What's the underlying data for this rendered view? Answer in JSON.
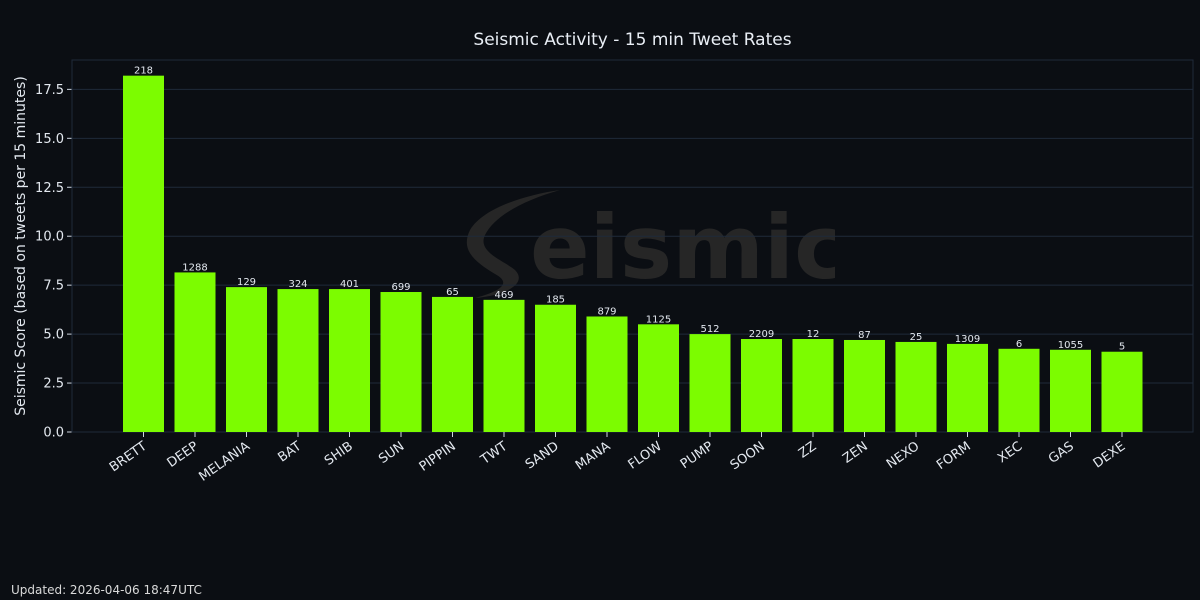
{
  "chart_data": {
    "type": "bar",
    "title": "Seismic Activity - 15 min Tweet Rates",
    "xlabel": "",
    "ylabel": "Seismic Score (based on tweets per 15 minutes)",
    "ylim": [
      0,
      19
    ],
    "yticks": [
      "0.0",
      "2.5",
      "5.0",
      "7.5",
      "10.0",
      "12.5",
      "15.0",
      "17.5"
    ],
    "grid": true,
    "categories": [
      "BRETT",
      "DEEP",
      "MELANIA",
      "BAT",
      "SHIB",
      "SUN",
      "PIPPIN",
      "TWT",
      "SAND",
      "MANA",
      "FLOW",
      "PUMP",
      "SOON",
      "ZZ",
      "ZEN",
      "NEXO",
      "FORM",
      "XEC",
      "GAS",
      "DEXE"
    ],
    "values": [
      18.2,
      8.15,
      7.4,
      7.3,
      7.3,
      7.15,
      6.9,
      6.75,
      6.5,
      5.9,
      5.5,
      5.0,
      4.75,
      4.75,
      4.7,
      4.6,
      4.5,
      4.25,
      4.2,
      4.1
    ],
    "data_labels": [
      "218",
      "1288",
      "129",
      "324",
      "401",
      "699",
      "65",
      "469",
      "185",
      "879",
      "1125",
      "512",
      "2209",
      "12",
      "87",
      "25",
      "1309",
      "6",
      "1055",
      "5"
    ],
    "bar_color": "#7cfc00",
    "grid_color": "#1f2a3a",
    "background_color": "#0b0e13"
  },
  "watermark": {
    "text": "eismic",
    "color": "#262626"
  },
  "footer": {
    "updated": "Updated: 2026-04-06 18:47UTC"
  }
}
